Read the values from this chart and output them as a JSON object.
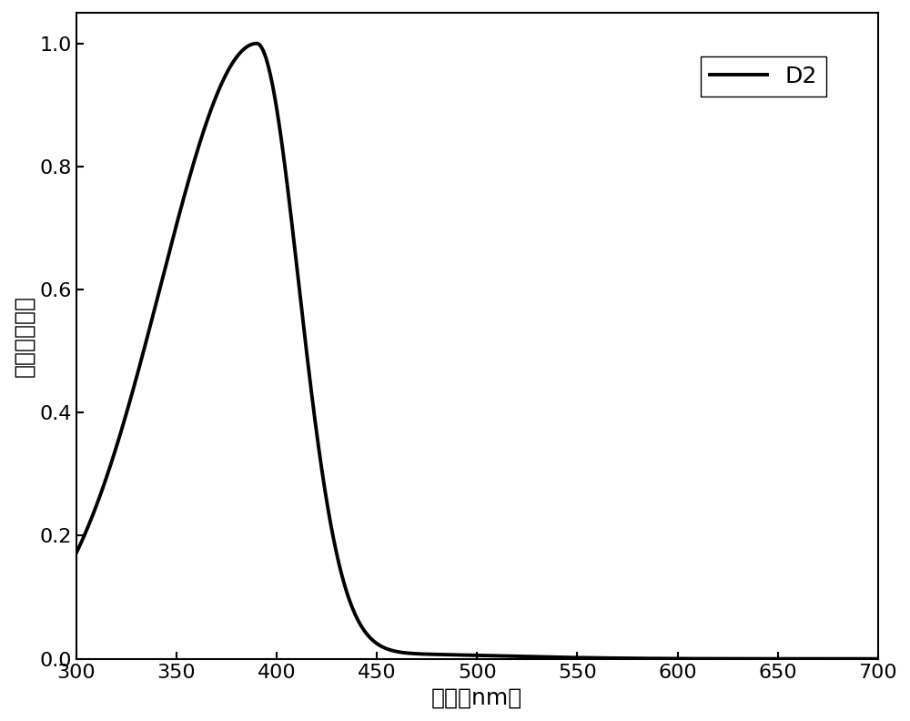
{
  "xlabel": "波长（nm）",
  "ylabel": "相对吸收强度",
  "xlim": [
    300,
    700
  ],
  "ylim": [
    0,
    1.05
  ],
  "xticks": [
    300,
    350,
    400,
    450,
    500,
    550,
    600,
    650,
    700
  ],
  "yticks": [
    0,
    0.2,
    0.4,
    0.6,
    0.8,
    1.0
  ],
  "legend_label": "D2",
  "line_color": "#000000",
  "line_width": 2.8,
  "background_color": "#ffffff",
  "xlabel_fontsize": 18,
  "ylabel_fontsize": 18,
  "tick_fontsize": 16,
  "legend_fontsize": 18
}
